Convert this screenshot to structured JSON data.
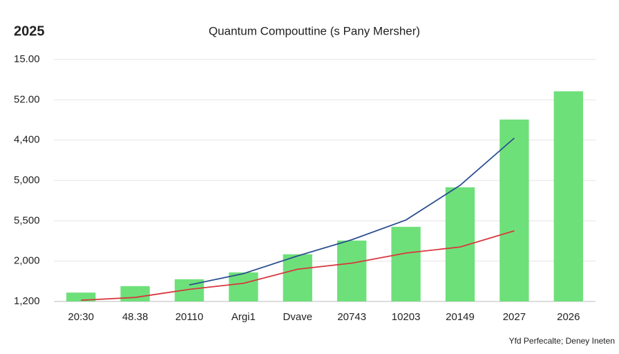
{
  "chart_data": {
    "type": "bar",
    "heading": "2025",
    "title": "Quantum Compouttine (s Pany Mersher)",
    "footnote": "Yfd Perfecalte; Deney Ineten",
    "categories": [
      "20:30",
      "48.38",
      "20110",
      "Argi1",
      "Dvave",
      "20743",
      "10203",
      "20149",
      "2027",
      "2026"
    ],
    "series": [
      {
        "type": "bar",
        "color": "#6ee07a",
        "values": [
          0.22,
          0.38,
          0.55,
          0.72,
          1.17,
          1.51,
          1.85,
          2.83,
          4.51,
          5.21
        ]
      },
      {
        "type": "line",
        "color": "#2c4f8f",
        "values": [
          null,
          null,
          0.41,
          0.69,
          1.13,
          1.53,
          2.02,
          2.88,
          4.05,
          null
        ]
      },
      {
        "type": "line",
        "color": "#d9363e",
        "values": [
          0.03,
          0.1,
          0.3,
          0.45,
          0.8,
          0.95,
          1.2,
          1.35,
          1.75,
          null
        ]
      }
    ],
    "ylim": [
      0,
      6
    ],
    "yticks": [
      {
        "value": 0,
        "label": "1,200"
      },
      {
        "value": 1,
        "label": "2,000"
      },
      {
        "value": 2,
        "label": "5,500"
      },
      {
        "value": 3,
        "label": "5,000"
      },
      {
        "value": 4,
        "label": "4,400"
      },
      {
        "value": 5,
        "label": "52.00"
      },
      {
        "value": 6,
        "label": "15.00"
      }
    ],
    "grid": true
  }
}
